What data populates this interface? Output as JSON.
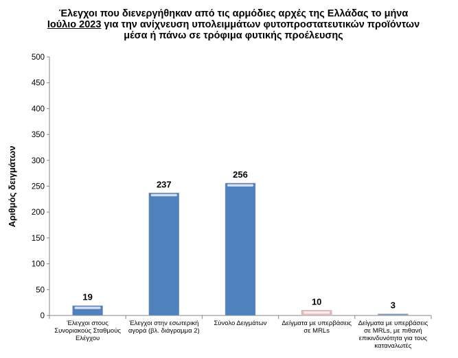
{
  "chart_data": {
    "type": "bar",
    "title_line1": "Έλεγχοι που διενεργήθηκαν από τις αρμόδιες αρχές της Ελλάδας το μήνα",
    "title_underlined": "Ιούλιο 2023",
    "title_line2_rest": " για την ανίχνευση υπολειμμάτων φυτοπροστατευτικών προϊόντων",
    "title_line3": "μέσα ή πάνω σε τρόφιμα φυτικής προέλευσης",
    "ylabel": "Αριθμός δειγμάτων",
    "xlabel": "",
    "ylim": [
      0,
      500
    ],
    "yticks": [
      0,
      50,
      100,
      150,
      200,
      250,
      300,
      350,
      400,
      450,
      500
    ],
    "grid": false,
    "categories": [
      [
        "Έλεγχοι στους",
        "Συνοριακούς Σταθμούς",
        "Ελέγχου"
      ],
      [
        "Έλεγχοι στην εσωτερική",
        "αγορά (βλ. διάγραμμα 2)"
      ],
      [
        "Σύνολο Δειγμάτων"
      ],
      [
        "Δείγματα με υπερβάσεις",
        "σε MRLs"
      ],
      [
        "Δείγματα με υπερβάσεις",
        "σε MRLs, με πιθανή",
        "επικινδυνότητα για τους",
        "καταναλωτές"
      ]
    ],
    "values": [
      19,
      237,
      256,
      10,
      3
    ],
    "colors": [
      "#4F81BD",
      "#4F81BD",
      "#4F81BD",
      "#E6B9B8",
      "#7F9BBF"
    ]
  }
}
